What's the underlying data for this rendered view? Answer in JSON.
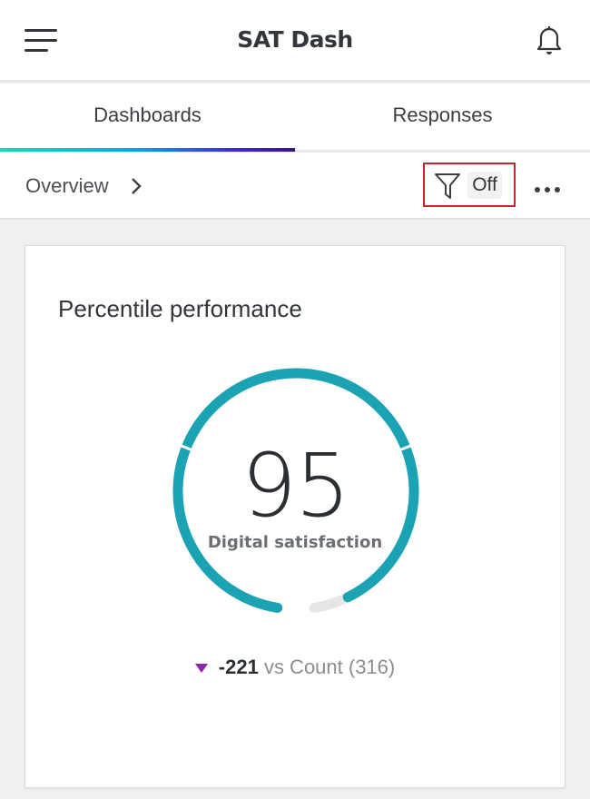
{
  "header": {
    "title": "SAT Dash",
    "menu_icon": "hamburger-icon",
    "notification_icon": "bell-icon"
  },
  "tabs": [
    {
      "label": "Dashboards",
      "active": true
    },
    {
      "label": "Responses",
      "active": false
    }
  ],
  "subbar": {
    "breadcrumb": "Overview",
    "filter_state": "Off",
    "filter_icon": "funnel-icon",
    "more_icon": "ellipsis-icon"
  },
  "card": {
    "title": "Percentile performance",
    "gauge": {
      "value": "95",
      "value_fraction": 0.95,
      "label": "Digital satisfaction",
      "thresholds": [
        30,
        70
      ],
      "range": [
        0,
        100
      ],
      "color": "#1ba3b4",
      "track_color": "#e6e6e6"
    },
    "comparison": {
      "trend": "down",
      "trend_color": "#8e24aa",
      "delta": "-221",
      "text": "vs Count (316)"
    }
  }
}
